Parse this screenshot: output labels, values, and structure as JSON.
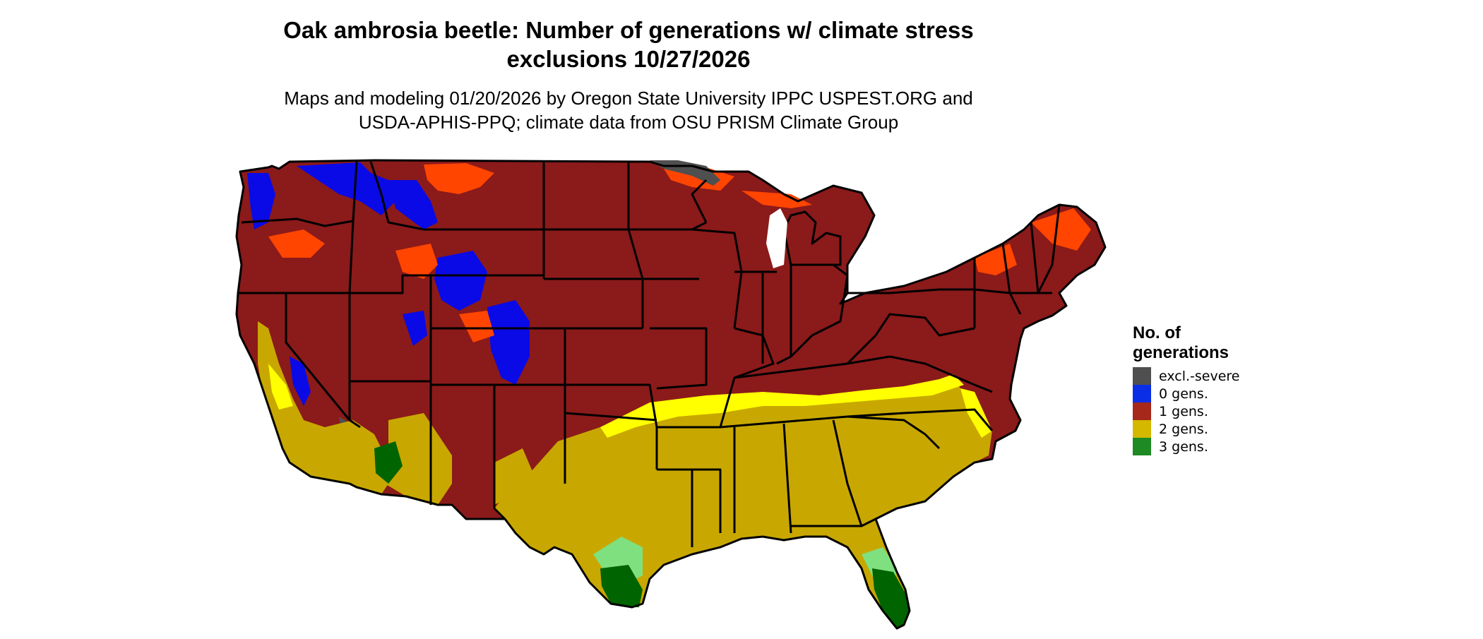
{
  "title_line1": "Oak ambrosia beetle: Number of generations w/ climate stress",
  "title_line2": "exclusions 10/27/2026",
  "subtitle_line1": "Maps and modeling 01/20/2026 by Oregon State University IPPC USPEST.ORG and",
  "subtitle_line2": "USDA-APHIS-PPQ; climate data from OSU PRISM Climate Group",
  "legend": {
    "title_line1": "No. of",
    "title_line2": "generations",
    "items": [
      {
        "label": "excl.-severe",
        "color": "#4f4f4f"
      },
      {
        "label": "0 gens.",
        "color": "#0a2ee6"
      },
      {
        "label": "1 gens.",
        "color": "#a5281b"
      },
      {
        "label": "2 gens.",
        "color": "#d4b800"
      },
      {
        "label": "3 gens.",
        "color": "#1e8a24"
      }
    ]
  },
  "map_colors": {
    "excl_severe": "#4f4f4f",
    "gens0": "#0a0ae6",
    "gens1": "#8b1a1a",
    "gens1_light": "#ff4500",
    "gens2": "#c8a800",
    "gens2_light": "#ffff00",
    "gens3": "#006400",
    "gens3_light": "#7fe07f",
    "border": "#000000"
  }
}
